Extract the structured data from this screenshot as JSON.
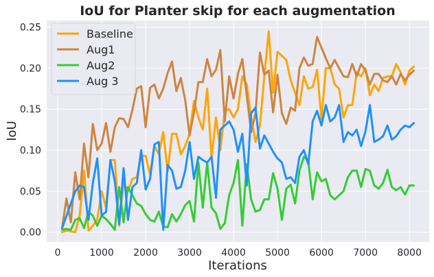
{
  "chart_data": {
    "type": "line",
    "title": "IoU for Planter skip for each augmentation",
    "xlabel": "Iterations",
    "ylabel": "IoU",
    "xlim": [
      -250,
      8450
    ],
    "ylim": [
      -0.012,
      0.258
    ],
    "xticks": [
      0,
      1000,
      2000,
      3000,
      4000,
      5000,
      6000,
      7000,
      8000
    ],
    "yticks": [
      0.0,
      0.05,
      0.1,
      0.15,
      0.2,
      0.25
    ],
    "xtick_labels": [
      "0",
      "1000",
      "2000",
      "3000",
      "4000",
      "5000",
      "6000",
      "7000",
      "8000"
    ],
    "ytick_labels": [
      "0.00",
      "0.05",
      "0.10",
      "0.15",
      "0.20",
      "0.25"
    ],
    "grid": true,
    "legend_position": "top-left",
    "x": [
      100,
      200,
      300,
      400,
      500,
      600,
      700,
      800,
      900,
      1000,
      1100,
      1200,
      1300,
      1400,
      1500,
      1600,
      1700,
      1800,
      1900,
      2000,
      2100,
      2200,
      2300,
      2400,
      2500,
      2600,
      2700,
      2800,
      2900,
      3000,
      3100,
      3200,
      3300,
      3400,
      3500,
      3600,
      3700,
      3800,
      3900,
      4000,
      4100,
      4200,
      4300,
      4400,
      4500,
      4600,
      4700,
      4800,
      4900,
      5000,
      5100,
      5200,
      5300,
      5400,
      5500,
      5600,
      5700,
      5800,
      5900,
      6000,
      6100,
      6200,
      6300,
      6400,
      6500,
      6600,
      6700,
      6800,
      6900,
      7000,
      7100,
      7200,
      7300,
      7400,
      7500,
      7600,
      7700,
      7800,
      7900,
      8000,
      8100
    ],
    "series": [
      {
        "name": "Baseline",
        "color": "#ffa500",
        "values": [
          0.0,
          0.002,
          0.001,
          0.0,
          0.02,
          0.075,
          0.002,
          0.008,
          0.015,
          0.05,
          0.03,
          0.088,
          0.088,
          0.008,
          0.06,
          0.05,
          0.065,
          0.067,
          0.093,
          0.093,
          0.07,
          0.105,
          0.095,
          0.122,
          0.074,
          0.12,
          0.12,
          0.095,
          0.105,
          0.12,
          0.16,
          0.14,
          0.125,
          0.175,
          0.09,
          0.14,
          0.1,
          0.148,
          0.15,
          0.14,
          0.15,
          0.19,
          0.18,
          0.14,
          0.11,
          0.13,
          0.19,
          0.245,
          0.17,
          0.22,
          0.215,
          0.21,
          0.185,
          0.17,
          0.155,
          0.19,
          0.175,
          0.177,
          0.198,
          0.138,
          0.2,
          0.2,
          0.18,
          0.175,
          0.14,
          0.155,
          0.155,
          0.195,
          0.19,
          0.2,
          0.167,
          0.18,
          0.172,
          0.188,
          0.19,
          0.19,
          0.205,
          0.195,
          0.18,
          0.197,
          0.202
        ]
      },
      {
        "name": "Aug1",
        "color": "#cd853f",
        "values": [
          0.005,
          0.041,
          0.012,
          0.073,
          0.04,
          0.108,
          0.067,
          0.132,
          0.1,
          0.108,
          0.133,
          0.098,
          0.128,
          0.139,
          0.138,
          0.128,
          0.149,
          0.175,
          0.178,
          0.128,
          0.176,
          0.18,
          0.163,
          0.175,
          0.194,
          0.208,
          0.172,
          0.188,
          0.161,
          0.118,
          0.146,
          0.183,
          0.183,
          0.211,
          0.19,
          0.198,
          0.222,
          0.135,
          0.19,
          0.163,
          0.193,
          0.211,
          0.167,
          0.122,
          0.145,
          0.219,
          0.192,
          0.197,
          0.146,
          0.192,
          0.145,
          0.132,
          0.152,
          0.148,
          0.2,
          0.213,
          0.203,
          0.205,
          0.238,
          0.225,
          0.212,
          0.2,
          0.21,
          0.2,
          0.19,
          0.189,
          0.205,
          0.19,
          0.205,
          0.197,
          0.18,
          0.193,
          0.193,
          0.185,
          0.183,
          0.19,
          0.18,
          0.193,
          0.185,
          0.192,
          0.197
        ]
      },
      {
        "name": "Aug2",
        "color": "#32cd32",
        "values": [
          0.003,
          0.004,
          0.003,
          0.015,
          0.017,
          0.005,
          0.025,
          0.02,
          0.008,
          0.02,
          0.016,
          0.01,
          0.003,
          0.055,
          0.012,
          0.055,
          0.045,
          0.035,
          0.032,
          0.022,
          0.015,
          0.013,
          0.025,
          0.007,
          0.006,
          0.022,
          0.013,
          0.022,
          0.033,
          0.038,
          0.013,
          0.085,
          0.03,
          0.085,
          0.03,
          0.023,
          0.004,
          0.011,
          0.045,
          0.06,
          0.088,
          0.008,
          0.083,
          0.04,
          0.025,
          0.027,
          0.04,
          0.04,
          0.072,
          0.053,
          0.015,
          0.053,
          0.058,
          0.035,
          0.075,
          0.092,
          0.087,
          0.04,
          0.073,
          0.062,
          0.065,
          0.045,
          0.04,
          0.045,
          0.05,
          0.067,
          0.075,
          0.075,
          0.055,
          0.077,
          0.075,
          0.057,
          0.053,
          0.06,
          0.076,
          0.055,
          0.051,
          0.055,
          0.046,
          0.057,
          0.057
        ]
      },
      {
        "name": "Aug 3",
        "color": "#1e90ff",
        "values": [
          0.005,
          0.02,
          0.035,
          0.05,
          0.057,
          0.055,
          0.015,
          0.06,
          0.09,
          0.02,
          0.025,
          0.088,
          0.062,
          0.01,
          0.078,
          0.015,
          0.055,
          0.06,
          0.1,
          0.052,
          0.065,
          0.107,
          0.11,
          0.003,
          0.082,
          0.075,
          0.053,
          0.055,
          0.075,
          0.11,
          0.065,
          0.092,
          0.088,
          0.085,
          0.092,
          0.042,
          0.125,
          0.13,
          0.135,
          0.125,
          0.098,
          0.12,
          0.057,
          0.145,
          0.152,
          0.102,
          0.118,
          0.108,
          0.098,
          0.09,
          0.085,
          0.065,
          0.067,
          0.06,
          0.092,
          0.1,
          0.083,
          0.135,
          0.148,
          0.13,
          0.155,
          0.135,
          0.14,
          0.155,
          0.11,
          0.122,
          0.118,
          0.125,
          0.105,
          0.123,
          0.155,
          0.11,
          0.113,
          0.117,
          0.13,
          0.113,
          0.117,
          0.125,
          0.13,
          0.128,
          0.133
        ]
      }
    ]
  }
}
